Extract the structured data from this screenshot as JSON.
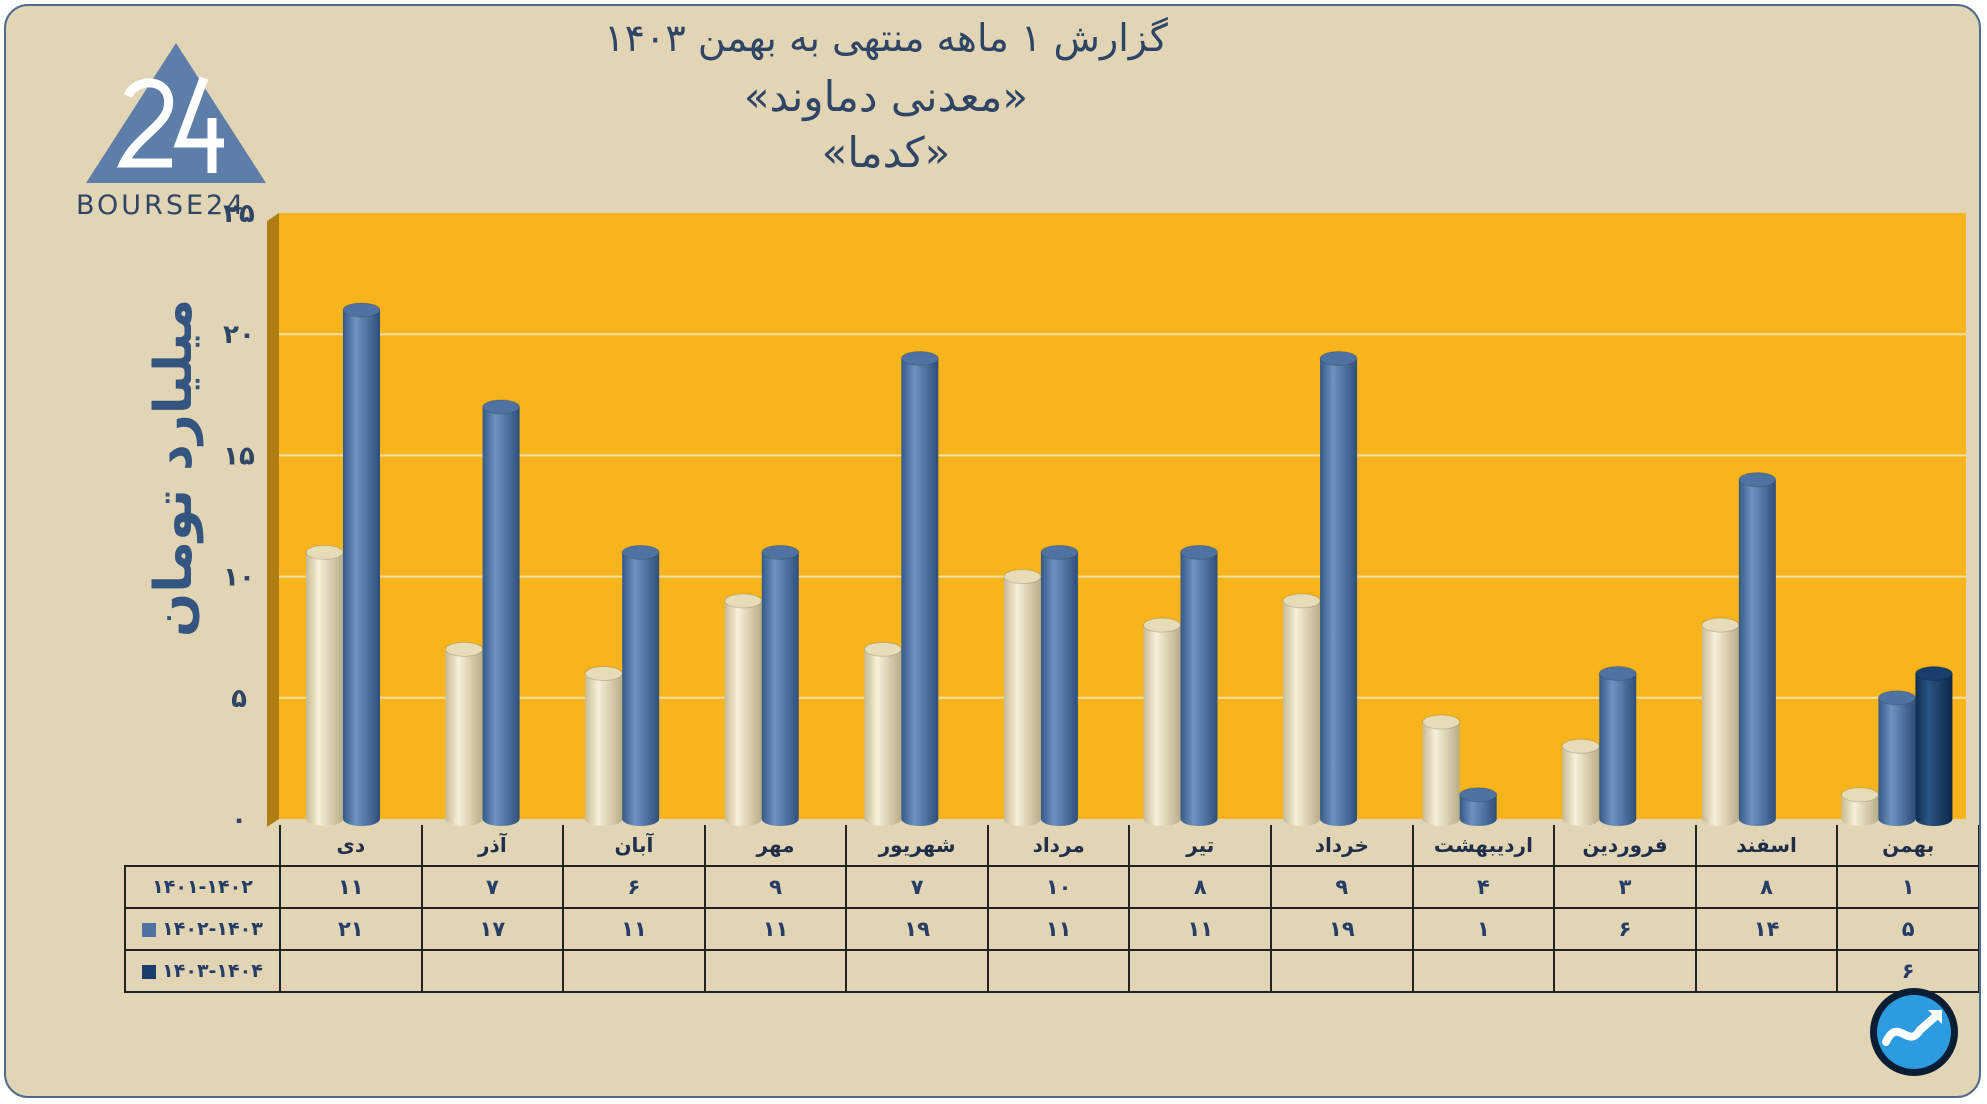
{
  "title_lines": [
    "گزارش ۱ ماهه منتهی به بهمن ۱۴۰۳",
    "«معدنی دماوند»",
    "«کدما»"
  ],
  "logo_text": "BOURSE24",
  "chart_data": {
    "type": "bar",
    "title": "گزارش ۱ ماهه منتهی به بهمن ۱۴۰۳",
    "ylabel": "میلیارد تومان",
    "ylim": [
      0,
      25
    ],
    "yticks": [
      0,
      5,
      10,
      15,
      20,
      25
    ],
    "ytick_labels": [
      "۰",
      "۵",
      "۱۰",
      "۱۵",
      "۲۰",
      "۲۵"
    ],
    "grid": true,
    "categories": [
      "بهمن",
      "اسفند",
      "فروردین",
      "اردیبهشت",
      "خرداد",
      "تیر",
      "مرداد",
      "شهریور",
      "مهر",
      "آبان",
      "آذر",
      "دی"
    ],
    "series": [
      {
        "name": "۱۴۰۱-۱۴۰۲",
        "color": "#e6dcb8",
        "values": [
          1,
          8,
          3,
          4,
          9,
          8,
          10,
          7,
          9,
          6,
          7,
          11
        ],
        "labels": [
          "۱",
          "۸",
          "۳",
          "۴",
          "۹",
          "۸",
          "۱۰",
          "۷",
          "۹",
          "۶",
          "۷",
          "۱۱"
        ]
      },
      {
        "name": "۱۴۰۲-۱۴۰۳",
        "color": "#4e73a3",
        "values": [
          5,
          14,
          6,
          1,
          19,
          11,
          11,
          19,
          11,
          11,
          17,
          21
        ],
        "labels": [
          "۵",
          "۱۴",
          "۶",
          "۱",
          "۱۹",
          "۱۱",
          "۱۱",
          "۱۹",
          "۱۱",
          "۱۱",
          "۱۷",
          "۲۱"
        ]
      },
      {
        "name": "۱۴۰۳-۱۴۰۴",
        "color": "#183e6b",
        "values": [
          6,
          null,
          null,
          null,
          null,
          null,
          null,
          null,
          null,
          null,
          null,
          null
        ],
        "labels": [
          "۶",
          "",
          "",
          "",
          "",
          "",
          "",
          "",
          "",
          "",
          "",
          ""
        ]
      }
    ]
  },
  "colors": {
    "plot_background": "#f8b41d",
    "card_background": "#e2d5b6",
    "title_text": "#2f4565"
  },
  "badge_icon": "trend-up-arrow-icon"
}
